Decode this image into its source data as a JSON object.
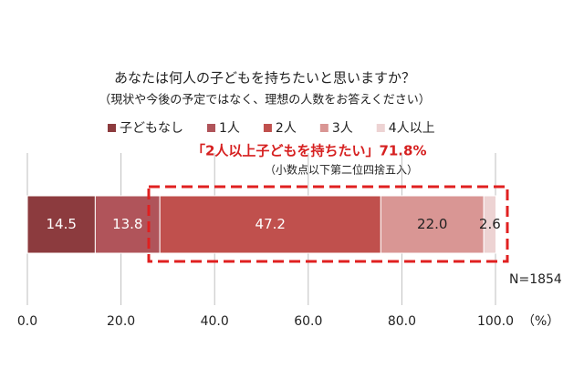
{
  "chart_data": {
    "type": "stacked-bar-horizontal",
    "title": "あなたは何人の子どもを持ちたいと思いますか？",
    "subtitle": "（現状や今後の予定ではなく、理想の人数をお答えください）",
    "annotation": "「2人以上子どもを持ちたい」71.8%",
    "note": "（小数点以下第二位四捨五入）",
    "sample_size": "N=1854",
    "x_unit": "（%）",
    "series": [
      {
        "name": "子どもなし",
        "color": "#8c3b3e",
        "values": [
          14.5
        ]
      },
      {
        "name": "1人",
        "color": "#b0545a",
        "values": [
          13.8
        ]
      },
      {
        "name": "2人",
        "color": "#c0504d",
        "values": [
          47.2
        ]
      },
      {
        "name": "3人",
        "color": "#d99694",
        "values": [
          22.0
        ],
        "value_labels": [
          "22.0"
        ]
      },
      {
        "name": "4人以上",
        "color": "#edd3d3",
        "values": [
          2.6
        ]
      }
    ],
    "xlim": [
      0,
      100
    ],
    "xticks": [
      {
        "value": 0,
        "label": "0.0"
      },
      {
        "value": 20,
        "label": "20.0"
      },
      {
        "value": 40,
        "label": "40.0"
      },
      {
        "value": 60,
        "label": "60.0"
      },
      {
        "value": 80,
        "label": "80.0"
      },
      {
        "value": 100,
        "label": "100.0"
      }
    ],
    "grid": true
  }
}
